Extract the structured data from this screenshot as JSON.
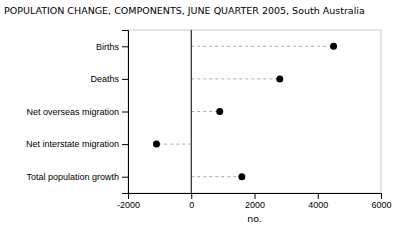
{
  "chart_data": {
    "type": "dot",
    "orientation": "horizontal",
    "title": "POPULATION CHANGE, COMPONENTS, JUNE QUARTER 2005, South Australia",
    "categories": [
      "Births",
      "Deaths",
      "Net overseas migration",
      "Net interstate migration",
      "Total population growth"
    ],
    "values": [
      4500,
      2800,
      900,
      -1100,
      1600
    ],
    "xlim": [
      -2000,
      6000
    ],
    "xticks": [
      -2000,
      0,
      2000,
      4000,
      6000
    ],
    "xlabel": "no.",
    "color": "black",
    "line_style": "dashed",
    "grid": false
  }
}
